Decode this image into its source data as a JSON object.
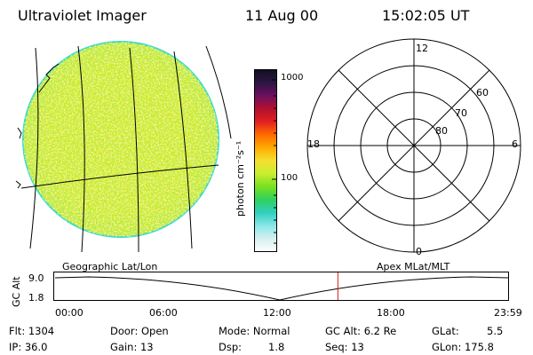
{
  "header": {
    "instrument": "Ultraviolet Imager",
    "date": "11 Aug 00",
    "time": "15:02:05 UT"
  },
  "colors": {
    "disk_primary": "#c8ec2a",
    "disk_secondary": "#f2e238",
    "disk_edge": "#39d9c6",
    "marker": "#e01818"
  },
  "colorbar": {
    "unit_label": "photon cm⁻²s⁻¹",
    "ticks": [
      "1000",
      "100"
    ],
    "stops": [
      "#101020",
      "#2a1540",
      "#6a1060",
      "#b01030",
      "#e02020",
      "#ff6a00",
      "#ffaa00",
      "#f4e030",
      "#c8ee30",
      "#78e020",
      "#30d060",
      "#30d0c0",
      "#8ce8e8",
      "#d8f0f0",
      "#ffffff"
    ]
  },
  "left_panel": {
    "caption": "Geographic Lat/Lon"
  },
  "polar": {
    "caption": "Apex MLat/MLT",
    "mlt_labels": {
      "top": "12",
      "right": "6",
      "bottom": "0",
      "left": "18"
    },
    "lat_labels": [
      "60",
      "70",
      "80"
    ]
  },
  "altitude_plot": {
    "ylabel": "GC Alt",
    "yticks": [
      "9.0",
      "1.8"
    ],
    "xticks": [
      "00:00",
      "06:00",
      "12:00",
      "18:00",
      "23:59"
    ],
    "current_time_fraction": 0.625
  },
  "info": {
    "flt": "Flt: 1304",
    "ip": "IP: 36.0",
    "door": "Door: Open",
    "gain": "Gain: 13",
    "mode": "Mode: Normal",
    "dsp_label": "Dsp:",
    "dsp_value": "1.8",
    "gc_alt": "GC Alt: 6.2 Re",
    "seq": "Seq: 13",
    "glat_label": "GLat:",
    "glat_value": "5.5",
    "glon": "GLon: 175.8"
  }
}
